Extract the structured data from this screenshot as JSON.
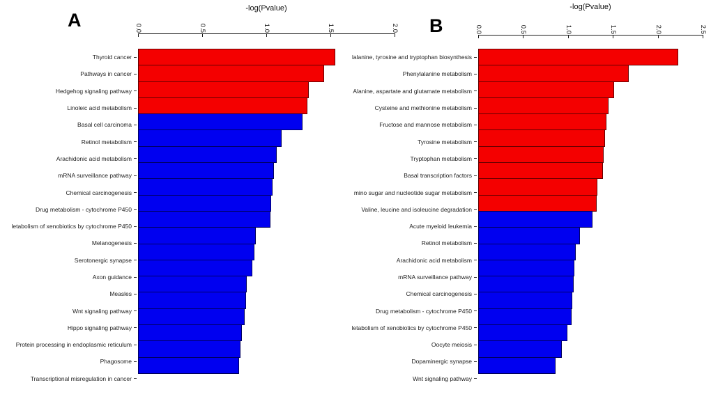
{
  "figure_title": "KEGG pathway enrichment bar charts",
  "colors": {
    "red": "#f40000",
    "blue": "#0000f0",
    "axis": "#1a1a1a"
  },
  "chart_data": [
    {
      "type": "bar",
      "orientation": "horizontal",
      "panel_label": "A",
      "title": "-log(Pvalue)",
      "xlabel": "-log(Pvalue)",
      "xlim": [
        0,
        2.0
      ],
      "tick_labels": [
        "0.0",
        "0.5",
        "1.0",
        "1.5",
        "2.0"
      ],
      "grid": false,
      "legend": "none",
      "bars": [
        {
          "label": "Thyroid cancer",
          "value": 1.54,
          "color": "red"
        },
        {
          "label": "Pathways in cancer",
          "value": 1.45,
          "color": "red"
        },
        {
          "label": "Hedgehog signaling pathway",
          "value": 1.33,
          "color": "red"
        },
        {
          "label": "Linoleic acid metabolism",
          "value": 1.32,
          "color": "red"
        },
        {
          "label": "Basal cell carcinoma",
          "value": 1.28,
          "color": "blue"
        },
        {
          "label": "Retinol metabolism",
          "value": 1.12,
          "color": "blue"
        },
        {
          "label": "Arachidonic acid metabolism",
          "value": 1.08,
          "color": "blue"
        },
        {
          "label": "mRNA surveillance pathway",
          "value": 1.06,
          "color": "blue"
        },
        {
          "label": "Chemical carcinogenesis",
          "value": 1.05,
          "color": "blue"
        },
        {
          "label": "Drug metabolism - cytochrome P450",
          "value": 1.04,
          "color": "blue"
        },
        {
          "label": "letabolism of xenobiotics by cytochrome P450",
          "value": 1.03,
          "color": "blue"
        },
        {
          "label": "Melanogenesis",
          "value": 0.92,
          "color": "blue"
        },
        {
          "label": "Serotonergic synapse",
          "value": 0.91,
          "color": "blue"
        },
        {
          "label": "Axon guidance",
          "value": 0.89,
          "color": "blue"
        },
        {
          "label": "Measles",
          "value": 0.85,
          "color": "blue"
        },
        {
          "label": "Wnt signaling pathway",
          "value": 0.84,
          "color": "blue"
        },
        {
          "label": "Hippo signaling pathway",
          "value": 0.83,
          "color": "blue"
        },
        {
          "label": "Protein processing in endoplasmic reticulum",
          "value": 0.81,
          "color": "blue"
        },
        {
          "label": "Phagosome",
          "value": 0.8,
          "color": "blue"
        },
        {
          "label": "Transcriptional misregulation in cancer",
          "value": 0.79,
          "color": "blue"
        }
      ]
    },
    {
      "type": "bar",
      "orientation": "horizontal",
      "panel_label": "B",
      "title": "-log(Pvalue)",
      "xlabel": "-log(Pvalue)",
      "xlim": [
        0,
        2.5
      ],
      "tick_labels": [
        "0.0",
        "0.5",
        "1.0",
        "1.5",
        "2.0",
        "2.5"
      ],
      "grid": false,
      "legend": "none",
      "bars": [
        {
          "label": "lalanine, tyrosine and tryptophan biosynthesis",
          "value": 2.23,
          "color": "red"
        },
        {
          "label": "Phenylalanine metabolism",
          "value": 1.68,
          "color": "red"
        },
        {
          "label": "Alanine, aspartate and glutamate metabolism",
          "value": 1.51,
          "color": "red"
        },
        {
          "label": "Cysteine and methionine metabolism",
          "value": 1.45,
          "color": "red"
        },
        {
          "label": "Fructose and mannose metabolism",
          "value": 1.43,
          "color": "red"
        },
        {
          "label": "Tyrosine metabolism",
          "value": 1.41,
          "color": "red"
        },
        {
          "label": "Tryptophan metabolism",
          "value": 1.4,
          "color": "red"
        },
        {
          "label": "Basal transcription factors",
          "value": 1.39,
          "color": "red"
        },
        {
          "label": "mino sugar and nucleotide sugar metabolism",
          "value": 1.33,
          "color": "red"
        },
        {
          "label": "Valine, leucine and isoleucine degradation",
          "value": 1.32,
          "color": "red"
        },
        {
          "label": "Acute myeloid leukemia",
          "value": 1.27,
          "color": "blue"
        },
        {
          "label": "Retinol metabolism",
          "value": 1.13,
          "color": "blue"
        },
        {
          "label": "Arachidonic acid metabolism",
          "value": 1.09,
          "color": "blue"
        },
        {
          "label": "mRNA surveillance pathway",
          "value": 1.07,
          "color": "blue"
        },
        {
          "label": "Chemical carcinogenesis",
          "value": 1.06,
          "color": "blue"
        },
        {
          "label": "Drug metabolism - cytochrome P450",
          "value": 1.05,
          "color": "blue"
        },
        {
          "label": "letabolism of xenobiotics by cytochrome P450",
          "value": 1.04,
          "color": "blue"
        },
        {
          "label": "Oocyte meiosis",
          "value": 0.99,
          "color": "blue"
        },
        {
          "label": "Dopaminergic synapse",
          "value": 0.93,
          "color": "blue"
        },
        {
          "label": "Wnt signaling pathway",
          "value": 0.86,
          "color": "blue"
        }
      ]
    }
  ]
}
